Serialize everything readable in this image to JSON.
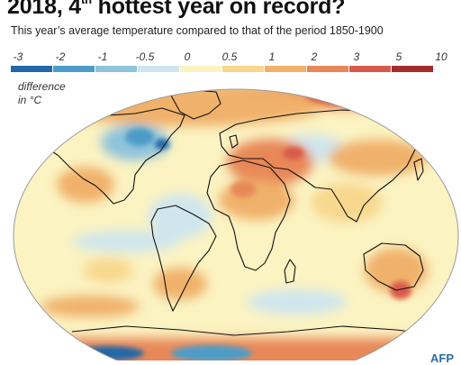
{
  "title": {
    "main": "2018, 4",
    "sup": "th",
    "rest": " hottest year on record?"
  },
  "subtitle": "This year’s average temperature compared to that of the period 1850-1900",
  "legend": {
    "caption_line1": "difference",
    "caption_line2": "in °C",
    "ticks": [
      "-3",
      "-2",
      "-1",
      "-0.5",
      "0",
      "0.5",
      "1",
      "2",
      "3",
      "5",
      "10"
    ],
    "colors": [
      "#2267a7",
      "#4d9cc7",
      "#8ec3dc",
      "#cfe6ee",
      "#fbf3c2",
      "#f7d88e",
      "#f0b16b",
      "#e88858",
      "#d85a4a",
      "#a42c2c"
    ]
  },
  "credit": "AFP"
}
